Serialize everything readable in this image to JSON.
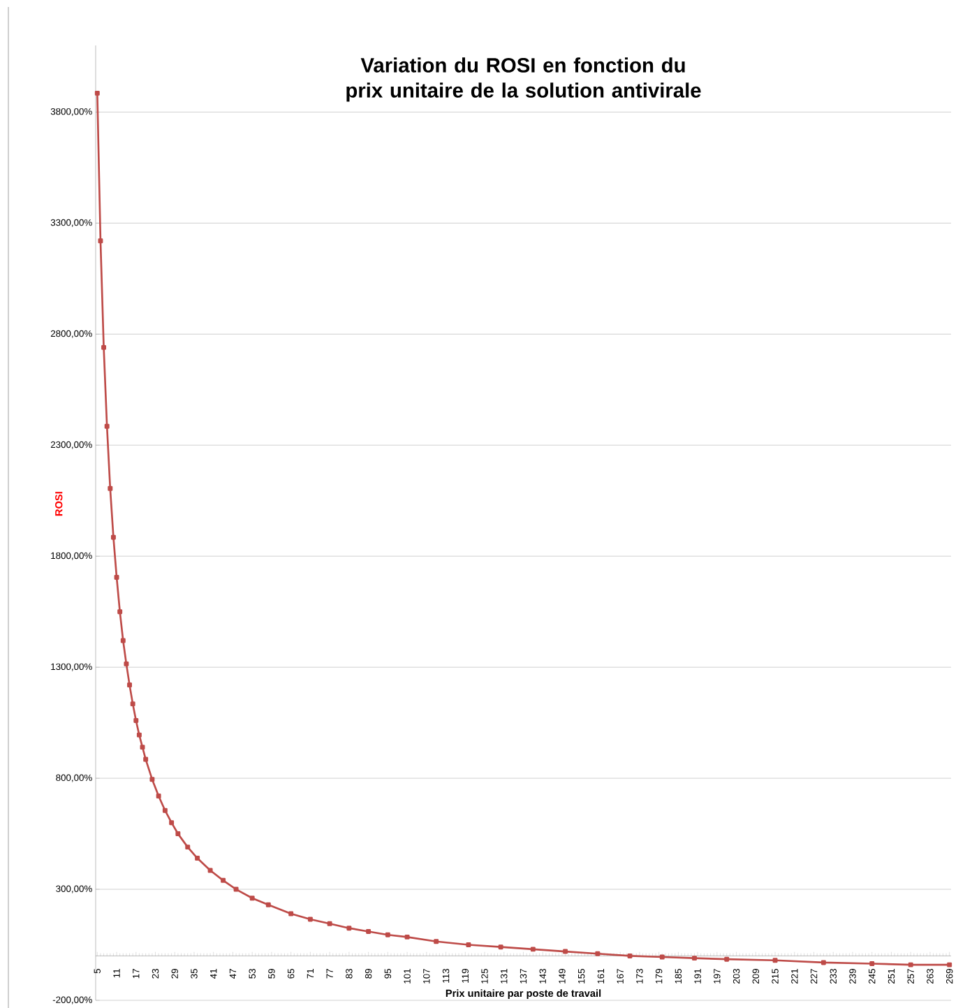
{
  "chart_data": {
    "type": "line",
    "title": "Variation du ROSI en fonction du prix unitaire de la solution antivirale",
    "xlabel": "Prix unitaire  par poste de travail",
    "ylabel": "ROSI",
    "series": [
      {
        "color": "#be4b48",
        "x": [
          5,
          6,
          7,
          8,
          9,
          10,
          11,
          12,
          13,
          14,
          15,
          16,
          17,
          18,
          19,
          20,
          22,
          24,
          26,
          28,
          30,
          33,
          36,
          40,
          44,
          48,
          53,
          58,
          65,
          71,
          77,
          83,
          89,
          95,
          101,
          110,
          120,
          130,
          140,
          150,
          160,
          170,
          180,
          190,
          200,
          215,
          230,
          245,
          257,
          269
        ],
        "values": [
          3885,
          3220,
          2740,
          2385,
          2105,
          1885,
          1705,
          1550,
          1420,
          1315,
          1220,
          1135,
          1060,
          995,
          940,
          885,
          795,
          720,
          655,
          600,
          550,
          490,
          440,
          385,
          340,
          300,
          260,
          230,
          190,
          165,
          145,
          125,
          110,
          95,
          85,
          65,
          50,
          40,
          30,
          20,
          10,
          0,
          -5,
          -10,
          -15,
          -20,
          -30,
          -35,
          -40,
          -40
        ]
      }
    ],
    "xlim": [
      4.5,
      269.5
    ],
    "xticks": [
      5,
      11,
      17,
      23,
      29,
      35,
      41,
      47,
      53,
      59,
      65,
      71,
      77,
      83,
      89,
      95,
      101,
      107,
      113,
      119,
      125,
      131,
      137,
      143,
      149,
      155,
      161,
      167,
      173,
      179,
      185,
      191,
      197,
      203,
      209,
      215,
      221,
      227,
      233,
      239,
      245,
      251,
      257,
      263,
      269
    ],
    "ylim": [
      -200,
      4100
    ],
    "yticks": [
      {
        "value": -200,
        "label": "-200,00%"
      },
      {
        "value": 300,
        "label": "300,00%"
      },
      {
        "value": 800,
        "label": "800,00%"
      },
      {
        "value": 1300,
        "label": "1300,00%"
      },
      {
        "value": 1800,
        "label": "1800,00%"
      },
      {
        "value": 2300,
        "label": "2300,00%"
      },
      {
        "value": 2800,
        "label": "2800,00%"
      },
      {
        "value": 3300,
        "label": "3300,00%"
      },
      {
        "value": 3800,
        "label": "3800,00%"
      }
    ],
    "grid": "y",
    "marker": "square",
    "line_style": "solid"
  }
}
